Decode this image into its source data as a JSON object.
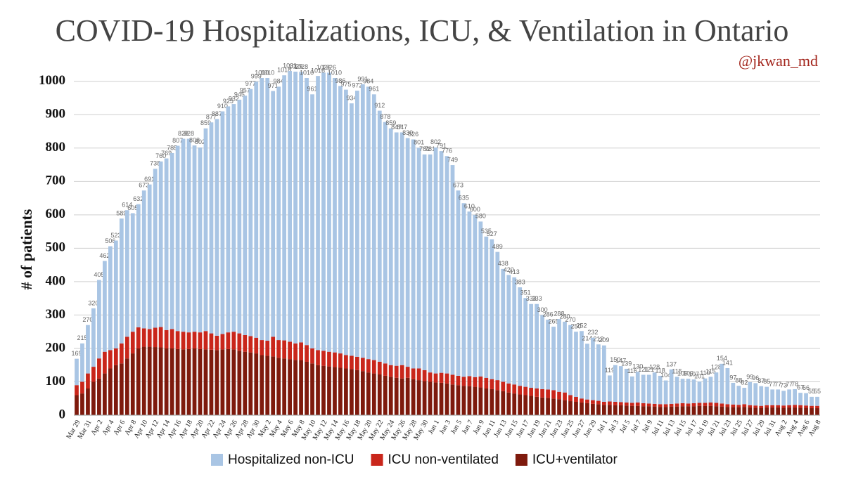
{
  "chart_data": {
    "type": "stacked_bar",
    "title": "COVID-19 Hospitalizations, ICU, & Ventilation in Ontario",
    "credit": "@jkwan_md",
    "ylabel": "# of patients",
    "ylim": [
      0,
      1050
    ],
    "yticks": [
      0,
      100,
      200,
      300,
      400,
      500,
      600,
      700,
      800,
      900,
      1000
    ],
    "grid": true,
    "categories": [
      "Mar 29",
      null,
      "Mar 31",
      null,
      "Apr 2",
      null,
      "Apr 4",
      null,
      "Apr 6",
      null,
      "Apr 8",
      null,
      "Apr 10",
      null,
      "Apr 12",
      null,
      "Apr 14",
      null,
      "Apr 16",
      null,
      "Apr 18",
      null,
      "Apr 20",
      null,
      "Apr 22",
      null,
      "Apr 24",
      null,
      "Apr 26",
      null,
      "Apr 28",
      null,
      "Apr 30",
      null,
      "May 2",
      null,
      "May 4",
      null,
      "May 6",
      null,
      "May 8",
      null,
      "May 10",
      null,
      "May 12",
      null,
      "May 14",
      null,
      "May 16",
      null,
      "May 18",
      null,
      "May 20",
      null,
      "May 22",
      null,
      "May 24",
      null,
      "May 26",
      null,
      "May 28",
      null,
      "May 30",
      null,
      "Jun 1",
      null,
      "Jun 3",
      null,
      "Jun 5",
      null,
      "Jun 7",
      null,
      "Jun 9",
      null,
      "Jun 11",
      null,
      "Jun 13",
      null,
      "Jun 15",
      null,
      "Jun 17",
      null,
      "Jun 19",
      null,
      "Jun 21",
      null,
      "Jun 23",
      null,
      "Jun 25",
      null,
      "Jun 27",
      null,
      "Jun 29",
      null,
      "Jul 1",
      null,
      "Jul 3",
      null,
      "Jul 5",
      null,
      "Jul 7",
      null,
      "Jul 9",
      null,
      "Jul 11",
      null,
      "Jul 13",
      null,
      "Jul 15",
      null,
      "Jul 17",
      null,
      "Jul 19",
      null,
      "Jul 21",
      null,
      "Jul 23",
      null,
      "Jul 25",
      null,
      "Jul 27",
      null,
      "Jul 29",
      null,
      "Jul 31",
      null,
      "Aug 2",
      null,
      "Aug 4",
      null,
      "Aug 6",
      null,
      "Aug 8"
    ],
    "series": [
      {
        "name": "Hospitalized non-ICU",
        "color": "#a9c5e4",
        "values": [
          79,
          115,
          145,
          175,
          235,
          272,
          311,
          323,
          374,
          379,
          355,
          369,
          413,
          433,
          476,
          496,
          514,
          527,
          555,
          578,
          580,
          558,
          554,
          607,
          632,
          649,
          667,
          677,
          682,
          700,
          717,
          740,
          767,
          785,
          787,
          736,
          759,
          794,
          811,
          814,
          810,
          800,
          761,
          821,
          833,
          836,
          822,
          801,
          795,
          756,
          797,
          819,
          816,
          796,
          752,
          723,
          709,
          699,
          697,
          685,
          686,
          661,
          646,
          653,
          677,
          664,
          651,
          628,
          555,
          520,
          493,
          486,
          464,
          423,
          419,
          384,
          338,
          325,
          321,
          295,
          266,
          251,
          253,
          222,
          209,
          190,
          218,
          212,
          210,
          195,
          202,
          167,
          187,
          169,
          169,
          78,
          110,
          108,
          101,
          79,
          92,
          85,
          86,
          94,
          85,
          71,
          103,
          80,
          73,
          74,
          71,
          64,
          73,
          77,
          91,
          119,
          108,
          65,
          57,
          49,
          69,
          67,
          59,
          55,
          47,
          47,
          44,
          47,
          47,
          37,
          37,
          27,
          27
        ]
      },
      {
        "name": "ICU non-ventilated",
        "color": "#c9261b",
        "values": [
          30,
          35,
          45,
          45,
          60,
          65,
          55,
          50,
          60,
          65,
          65,
          63,
          55,
          53,
          58,
          61,
          55,
          58,
          54,
          53,
          50,
          50,
          50,
          55,
          49,
          43,
          46,
          50,
          53,
          52,
          50,
          49,
          47,
          45,
          45,
          59,
          53,
          54,
          52,
          50,
          53,
          50,
          45,
          45,
          45,
          44,
          44,
          43,
          40,
          40,
          40,
          40,
          40,
          40,
          38,
          37,
          35,
          36,
          40,
          33,
          32,
          35,
          33,
          28,
          27,
          30,
          30,
          29,
          28,
          27,
          30,
          29,
          33,
          32,
          30,
          30,
          28,
          27,
          27,
          26,
          25,
          24,
          25,
          25,
          25,
          25,
          22,
          23,
          18,
          15,
          12,
          11,
          11,
          10,
          9,
          10,
          10,
          9,
          9,
          9,
          10,
          9,
          8,
          8,
          8,
          8,
          8,
          9,
          9,
          8,
          9,
          9,
          9,
          10,
          10,
          9,
          8,
          8,
          7,
          8,
          7,
          7,
          6,
          7,
          7,
          7,
          7,
          7,
          8,
          8,
          7,
          7,
          7
        ]
      },
      {
        "name": "ICU+ventilator",
        "color": "#7e1a0d",
        "values": [
          60,
          65,
          80,
          100,
          110,
          125,
          140,
          150,
          155,
          170,
          185,
          200,
          205,
          205,
          204,
          203,
          200,
          200,
          198,
          197,
          198,
          200,
          198,
          197,
          196,
          195,
          197,
          198,
          197,
          193,
          190,
          188,
          185,
          180,
          178,
          176,
          172,
          170,
          168,
          165,
          165,
          160,
          155,
          150,
          148,
          146,
          144,
          142,
          140,
          138,
          135,
          132,
          128,
          125,
          122,
          118,
          115,
          112,
          110,
          112,
          108,
          105,
          102,
          100,
          98,
          97,
          95,
          92,
          90,
          88,
          87,
          85,
          83,
          80,
          78,
          75,
          72,
          68,
          65,
          62,
          60,
          58,
          55,
          53,
          52,
          50,
          48,
          45,
          42,
          40,
          38,
          36,
          34,
          33,
          31,
          31,
          30,
          30,
          29,
          28,
          28,
          27,
          27,
          26,
          25,
          25,
          26,
          26,
          27,
          27,
          27,
          28,
          28,
          28,
          27,
          26,
          25,
          24,
          24,
          25,
          23,
          22,
          22,
          23,
          23,
          23,
          22,
          23,
          23,
          22,
          22,
          21,
          21
        ]
      }
    ],
    "totals": [
      169,
      215,
      270,
      320,
      405,
      462,
      506,
      523,
      589,
      614,
      605,
      632,
      673,
      691,
      738,
      760,
      769,
      785,
      807,
      828,
      828,
      808,
      802,
      859,
      877,
      887,
      910,
      925,
      932,
      945,
      957,
      977,
      999,
      1010,
      1010,
      971,
      984,
      1018,
      1031,
      1029,
      1028,
      1010,
      961,
      1016,
      1026,
      1026,
      1010,
      986,
      975,
      934,
      972,
      991,
      984,
      961,
      912,
      878,
      859,
      847,
      847,
      830,
      826,
      801,
      781,
      781,
      802,
      791,
      776,
      749,
      673,
      635,
      610,
      600,
      580,
      535,
      527,
      489,
      438,
      420,
      413,
      383,
      351,
      333,
      333,
      300,
      286,
      265,
      288,
      280,
      270,
      250,
      252,
      214,
      232,
      212,
      209,
      119,
      150,
      147,
      139,
      116,
      130,
      121,
      121,
      128,
      118,
      104,
      137,
      115,
      109,
      109,
      107,
      101,
      110,
      115,
      128,
      154,
      141,
      97,
      88,
      82,
      99,
      96,
      87,
      85,
      77,
      77,
      73,
      77,
      78,
      67,
      66,
      55,
      55
    ]
  }
}
